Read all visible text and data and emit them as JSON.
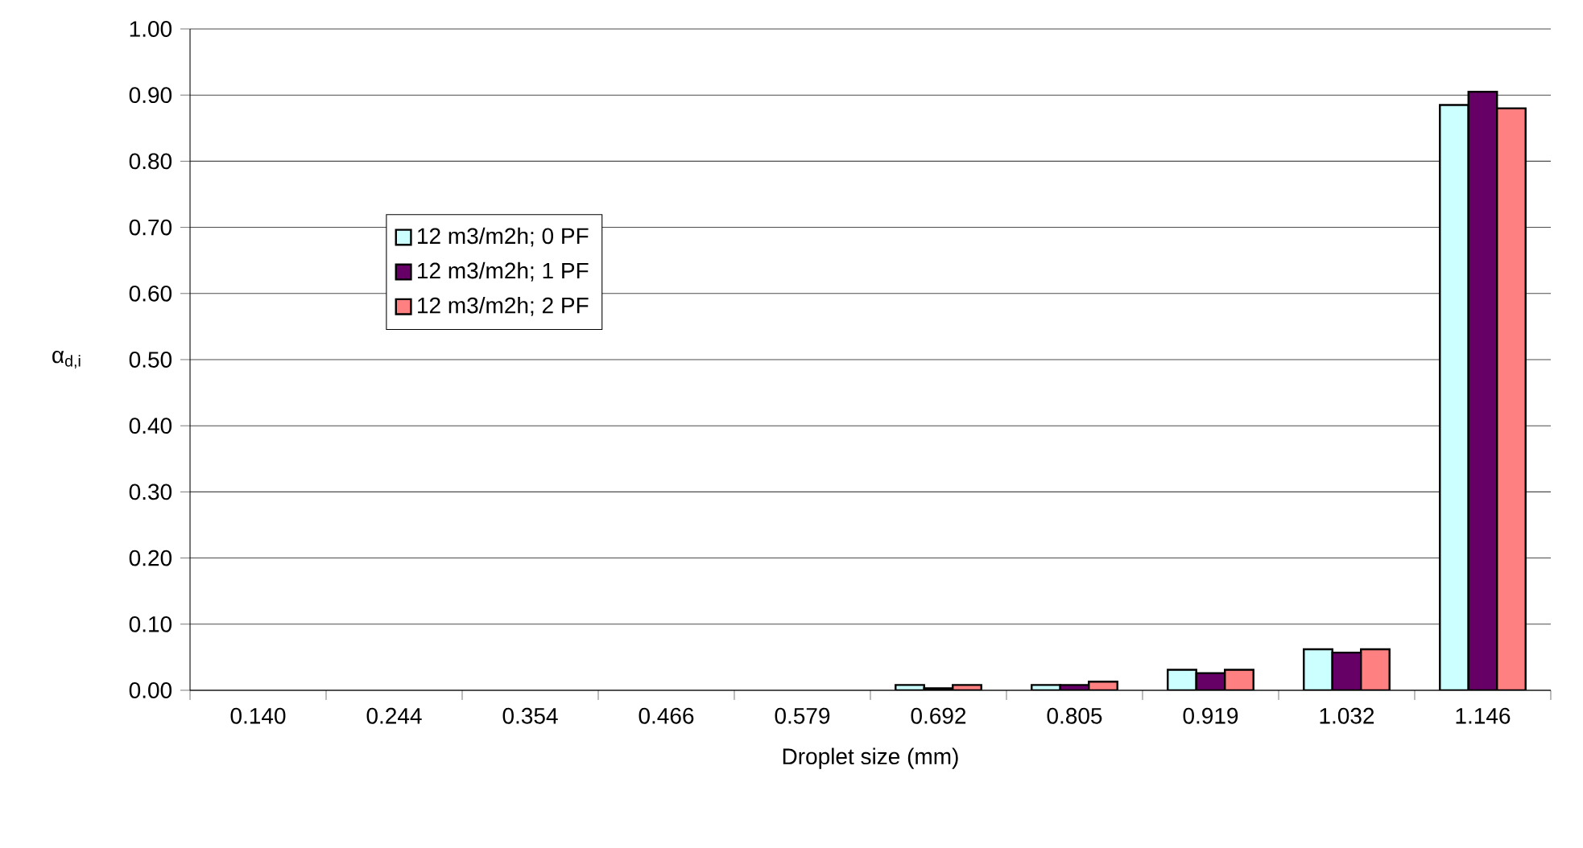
{
  "chart_data": {
    "type": "bar",
    "xlabel": "Droplet size (mm)",
    "ylabel": "α$_{d,i}$",
    "categories": [
      "0.140",
      "0.244",
      "0.354",
      "0.466",
      "0.579",
      "0.692",
      "0.805",
      "0.919",
      "1.032",
      "1.146"
    ],
    "series": [
      {
        "name": "12 m3/m2h; 0 PF",
        "color": "#ccffff",
        "values": [
          0,
          0,
          0,
          0,
          0,
          0.008,
          0.008,
          0.031,
          0.062,
          0.885
        ]
      },
      {
        "name": "12 m3/m2h; 1 PF",
        "color": "#660066",
        "values": [
          0,
          0,
          0,
          0,
          0,
          0.003,
          0.008,
          0.026,
          0.057,
          0.905
        ]
      },
      {
        "name": "12 m3/m2h; 2 PF",
        "color": "#ff8080",
        "values": [
          0,
          0,
          0,
          0,
          0,
          0.008,
          0.013,
          0.031,
          0.062,
          0.88
        ]
      }
    ],
    "ylim": [
      0,
      1
    ],
    "yticks": [
      {
        "value": 0,
        "label": "0.00"
      },
      {
        "value": 0.1,
        "label": "0.10"
      },
      {
        "value": 0.2,
        "label": "0.20"
      },
      {
        "value": 0.3,
        "label": "0.30"
      },
      {
        "value": 0.4,
        "label": "0.40"
      },
      {
        "value": 0.5,
        "label": "0.50"
      },
      {
        "value": 0.6,
        "label": "0.60"
      },
      {
        "value": 0.7,
        "label": "0.70"
      },
      {
        "value": 0.8,
        "label": "0.80"
      },
      {
        "value": 0.9,
        "label": "0.90"
      },
      {
        "value": 1,
        "label": "1.00"
      }
    ],
    "grid": "y",
    "legend": "top left"
  }
}
